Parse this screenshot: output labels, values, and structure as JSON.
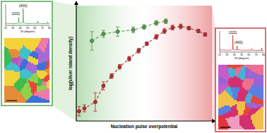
{
  "chart_data": [
    {
      "type": "scatter",
      "x_label": "Nucleation pulse overpotential",
      "y_label": "log(silver island density)",
      "xlim": [
        0,
        10
      ],
      "ylim": [
        0,
        10
      ],
      "tick_labels": false,
      "series": [
        {
          "color": "#c1272d",
          "marker": "circle",
          "line_style": "dashed",
          "x": [
            0.2,
            0.6,
            1.4,
            2.0,
            2.6,
            3.2,
            3.9,
            4.6,
            5.2,
            5.9,
            6.5,
            7.1,
            7.7,
            8.3,
            9.0,
            9.5
          ],
          "values": [
            0.85,
            1.1,
            1.65,
            3.05,
            3.9,
            4.7,
            5.4,
            6.1,
            6.7,
            7.3,
            7.8,
            8.1,
            8.2,
            8.05,
            7.8,
            7.5
          ],
          "errors": [
            0.4,
            0.3,
            0.8,
            0.35,
            0.2,
            0.2,
            0.2,
            0.2,
            0.15,
            0.2,
            0.2,
            0.2,
            0.2,
            0.15,
            0.15,
            0.15
          ]
        },
        {
          "color": "#4f9e4a",
          "marker": "circle",
          "line_style": "dashed",
          "x": [
            1.15,
            2.0,
            3.05,
            4.2,
            5.0,
            5.9,
            6.6
          ],
          "values": [
            6.95,
            7.55,
            7.75,
            7.9,
            8.15,
            8.5,
            8.65
          ],
          "errors": [
            0.8,
            0.3,
            0.4,
            0.25,
            0.2,
            0.2,
            0.2
          ]
        }
      ]
    },
    {
      "type": "line",
      "x_label": "2θ (degree)",
      "xlim": [
        20,
        80
      ],
      "xticks": [
        20,
        30,
        40,
        50,
        60,
        70,
        80
      ],
      "ylim": [
        0,
        12
      ],
      "tick_labels": "x",
      "series": [
        {
          "color": "#3c9a3c",
          "x": [
            20,
            30,
            36,
            37.5,
            38,
            38.5,
            40,
            43.5,
            44,
            44.5,
            50,
            63.5,
            64,
            64.5,
            70,
            77,
            77.5,
            78,
            80
          ],
          "values": [
            1.2,
            1.0,
            1.0,
            1.3,
            4.5,
            1.3,
            1.0,
            1.4,
            9.5,
            1.4,
            1.0,
            1.1,
            2.5,
            1.1,
            1.0,
            1.0,
            2.0,
            1.0,
            1.0
          ]
        }
      ],
      "annotations": [
        {
          "text": "(222)",
          "x": 34,
          "y": 6
        },
        {
          "text": "(400)",
          "x": 44,
          "y": 10.5
        }
      ]
    },
    {
      "type": "line",
      "x_label": "2θ (degree)",
      "xlim": [
        20,
        80
      ],
      "xticks": [
        20,
        30,
        40,
        50,
        60,
        70,
        80
      ],
      "ylim": [
        0,
        12
      ],
      "tick_labels": "x",
      "series": [
        {
          "color": "#c1272d",
          "x": [
            20,
            30,
            36,
            37.5,
            38,
            38.5,
            40,
            43.5,
            44,
            44.5,
            50,
            63.5,
            64,
            64.5,
            70,
            77,
            77.5,
            78,
            80
          ],
          "values": [
            1.3,
            1.1,
            1.1,
            1.5,
            9.5,
            1.5,
            1.1,
            1.3,
            3.5,
            1.3,
            1.1,
            1.1,
            2.0,
            1.1,
            1.0,
            1.0,
            2.4,
            1.0,
            1.0
          ]
        }
      ],
      "annotations": [
        {
          "text": "(222)",
          "x": 38,
          "y": 10.5
        },
        {
          "text": "(400)",
          "x": 46,
          "y": 5
        }
      ]
    }
  ]
}
